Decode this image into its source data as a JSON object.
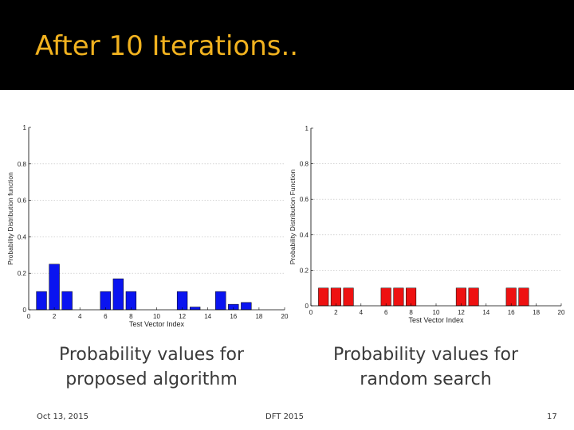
{
  "slide": {
    "title": "After 10 Iterations..",
    "caption_left_line1": "Probability values for",
    "caption_left_line2": "proposed algorithm",
    "caption_right_line1": "Probability values for",
    "caption_right_line2": "random search",
    "footer_date": "Oct 13, 2015",
    "footer_center": "DFT 2015",
    "footer_page": "17",
    "title_color": "#f1b21f",
    "title_bar_color": "#000000"
  },
  "chart_data": [
    {
      "type": "bar",
      "xlabel": "Test Vector Index",
      "ylabel": "Probability Distribution function",
      "xlim": [
        0,
        20
      ],
      "ylim": [
        0,
        1
      ],
      "xticks": [
        0,
        2,
        4,
        6,
        8,
        10,
        12,
        14,
        16,
        18,
        20
      ],
      "yticks": [
        0,
        0.2,
        0.4,
        0.6,
        0.8,
        1
      ],
      "grid": true,
      "color": "#0a14f0",
      "x": [
        1,
        2,
        3,
        4,
        5,
        6,
        7,
        8,
        9,
        10,
        11,
        12,
        13,
        14,
        15,
        16,
        17,
        18
      ],
      "values": [
        0.1,
        0.25,
        0.1,
        0,
        0,
        0.1,
        0.17,
        0.1,
        0,
        0,
        0,
        0.1,
        0.015,
        0,
        0.1,
        0.03,
        0.04,
        0
      ]
    },
    {
      "type": "bar",
      "xlabel": "Test Vector Index",
      "ylabel": "Probability Distribution Function",
      "xlim": [
        0,
        20
      ],
      "ylim": [
        0,
        1
      ],
      "xticks": [
        0,
        2,
        4,
        6,
        8,
        10,
        12,
        14,
        16,
        18,
        20
      ],
      "yticks": [
        0,
        0.2,
        0.4,
        0.6,
        0.8,
        1
      ],
      "grid": true,
      "color": "#ee1111",
      "x": [
        1,
        2,
        3,
        4,
        5,
        6,
        7,
        8,
        9,
        10,
        11,
        12,
        13,
        14,
        15,
        16,
        17,
        18
      ],
      "values": [
        0.1,
        0.1,
        0.1,
        0,
        0,
        0.1,
        0.1,
        0.1,
        0,
        0,
        0,
        0.1,
        0.1,
        0,
        0,
        0.1,
        0.1,
        0
      ]
    }
  ]
}
